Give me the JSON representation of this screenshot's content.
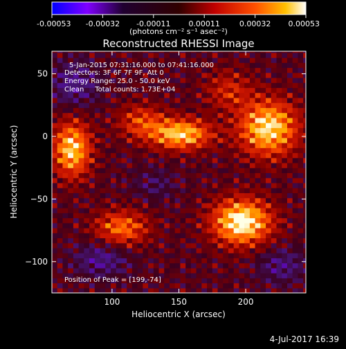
{
  "colorbar": {
    "ticks": [
      "-0.00053",
      "-0.00032",
      "-0.00011",
      "0.00011",
      "0.00032",
      "0.00053"
    ],
    "unit_label": "(photons cm⁻² s⁻¹ asec⁻²)",
    "range": [
      -0.00053,
      0.00053
    ],
    "colors": [
      "#0000ff",
      "#8000ff",
      "#000000",
      "#600000",
      "#c00000",
      "#ff5000",
      "#ffb000",
      "#ffffff"
    ]
  },
  "chart_data": {
    "type": "heatmap",
    "title": "Reconstructed RHESSI Image",
    "xlabel": "Heliocentric X (arcsec)",
    "ylabel": "Heliocentric Y (arcsec)",
    "xlim": [
      55,
      245
    ],
    "ylim": [
      -125,
      68
    ],
    "xticks": [
      "100",
      "150",
      "200"
    ],
    "yticks": [
      "50",
      "0",
      "−50",
      "−100"
    ],
    "xtick_values": [
      100,
      150,
      200
    ],
    "ytick_values": [
      50,
      0,
      -50,
      -100
    ],
    "annotations": [
      "5-Jan-2015 07:31:16.000 to 07:41:16.000",
      "Detectors: 3F 6F 7F 9F, Att 0",
      "Energy Range: 25.0 - 50.0 keV",
      "Clean     Total counts: 1.73E+04"
    ],
    "peak_label": "Position of Peak = [199,-74]",
    "peak": [
      199,
      -74
    ],
    "blobs": [
      {
        "x": 195,
        "y": -70,
        "amp": 1.0,
        "sx": 22,
        "sy": 18
      },
      {
        "x": 215,
        "y": 5,
        "amp": 0.9,
        "sx": 22,
        "sy": 22
      },
      {
        "x": 150,
        "y": 0,
        "amp": 0.85,
        "sx": 22,
        "sy": 12
      },
      {
        "x": 68,
        "y": -12,
        "amp": 0.85,
        "sx": 14,
        "sy": 22
      },
      {
        "x": 105,
        "y": -75,
        "amp": 0.6,
        "sx": 20,
        "sy": 14
      },
      {
        "x": 120,
        "y": 10,
        "amp": 0.45,
        "sx": 18,
        "sy": 14
      },
      {
        "x": 185,
        "y": 35,
        "amp": 0.35,
        "sx": 18,
        "sy": 16
      },
      {
        "x": 70,
        "y": 40,
        "amp": -0.35,
        "sx": 18,
        "sy": 18
      },
      {
        "x": 90,
        "y": -100,
        "amp": -0.35,
        "sx": 20,
        "sy": 14
      },
      {
        "x": 225,
        "y": -105,
        "amp": -0.3,
        "sx": 18,
        "sy": 14
      },
      {
        "x": 130,
        "y": -40,
        "amp": -0.2,
        "sx": 16,
        "sy": 12
      }
    ]
  },
  "footer": {
    "date": "4-Jul-2017 16:39"
  }
}
